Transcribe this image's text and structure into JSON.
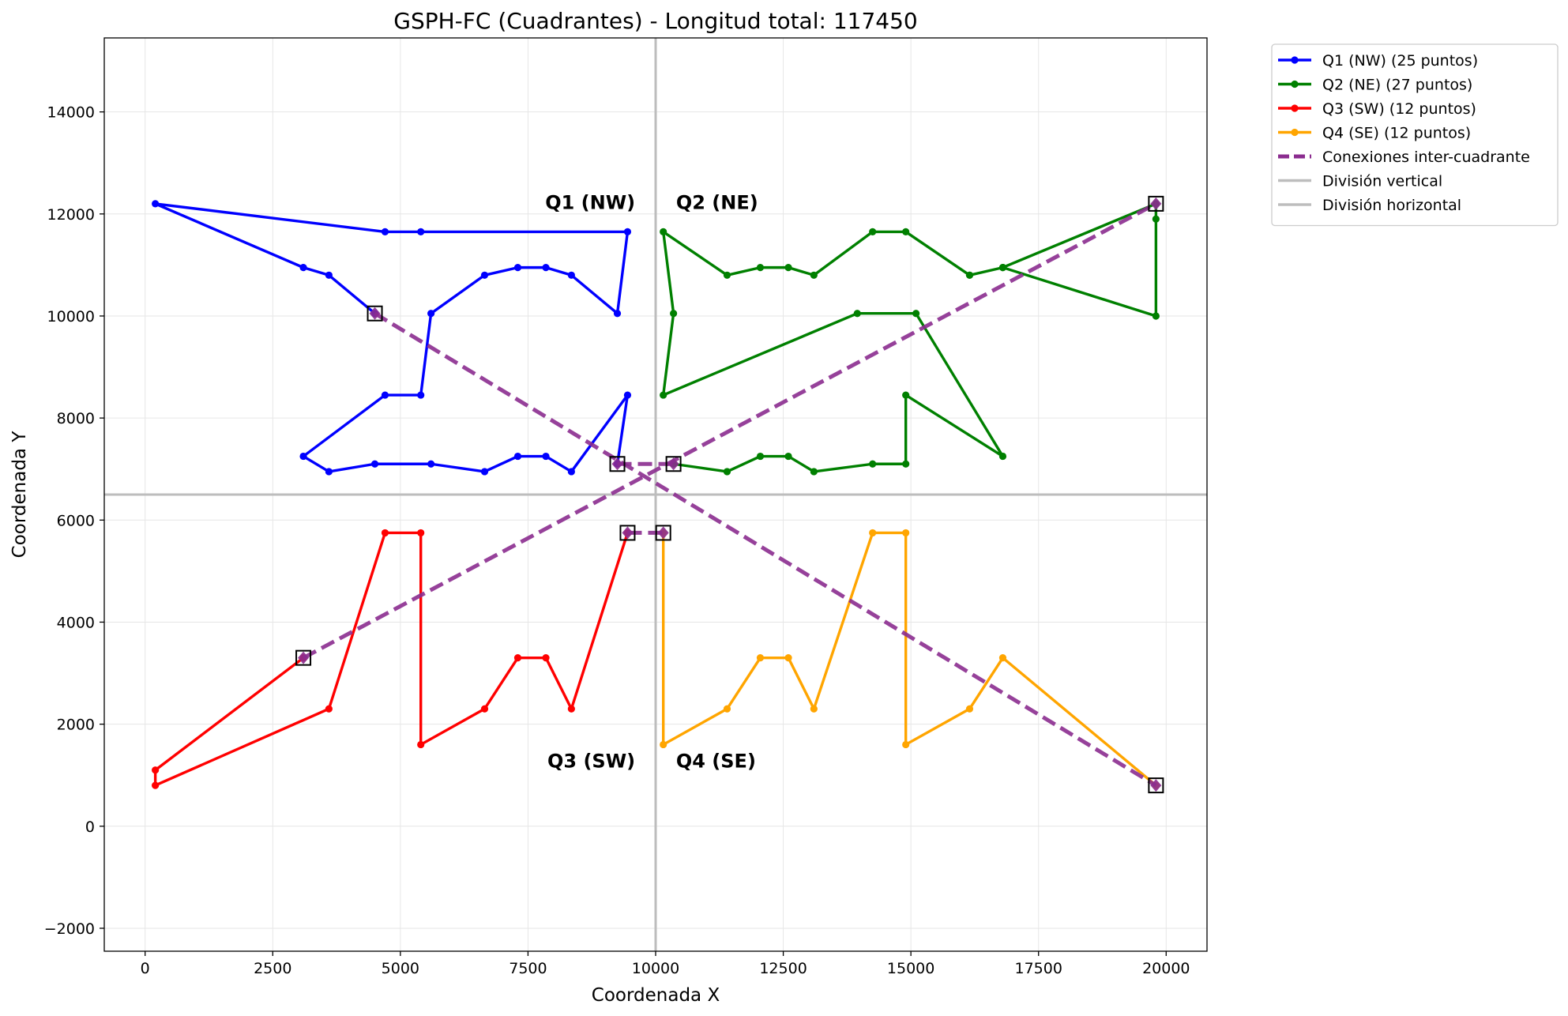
{
  "chart_data": {
    "type": "line",
    "title": "GSPH-FC (Cuadrantes) - Longitud total: 117450",
    "xlabel": "Coordenada X",
    "ylabel": "Coordenada Y",
    "xlim": [
      -800,
      20800
    ],
    "ylim": [
      -2450,
      15450
    ],
    "x_ticks": [
      0,
      2500,
      5000,
      7500,
      10000,
      12500,
      15000,
      17500,
      20000
    ],
    "x_tick_labels": [
      "0",
      "2500",
      "5000",
      "7500",
      "10000",
      "12500",
      "15000",
      "17500",
      "20000"
    ],
    "y_ticks": [
      -2000,
      0,
      2000,
      4000,
      6000,
      8000,
      10000,
      12000,
      14000
    ],
    "y_tick_labels": [
      "−2000",
      "0",
      "2000",
      "4000",
      "6000",
      "8000",
      "10000",
      "12000",
      "14000"
    ],
    "grid": true,
    "legend_position": "outside top-right",
    "divisions": {
      "vertical_x": 10000,
      "horizontal_y": 6500,
      "color": "#bdbdbd"
    },
    "quadrant_labels": [
      {
        "text": "Q1 (NW)",
        "x": 9600,
        "y": 12100,
        "anchor": "end"
      },
      {
        "text": "Q2 (NE)",
        "x": 10400,
        "y": 12100,
        "anchor": "start"
      },
      {
        "text": "Q3 (SW)",
        "x": 9600,
        "y": 1150,
        "anchor": "end"
      },
      {
        "text": "Q4 (SE)",
        "x": 10400,
        "y": 1150,
        "anchor": "start"
      }
    ],
    "series": [
      {
        "name": "Q1 (NW) (25 puntos)",
        "color": "#0000ff",
        "x": [
          4500,
          3600,
          3100,
          200,
          4700,
          5400,
          9450,
          9250,
          8350,
          7850,
          7300,
          6650,
          5600,
          5400,
          4700,
          3100,
          3600,
          4500,
          5600,
          6650,
          7300,
          7850,
          8350,
          9450,
          9250
        ],
        "y": [
          10050,
          10800,
          10950,
          12200,
          11650,
          11650,
          11650,
          10050,
          10800,
          10950,
          10950,
          10800,
          10050,
          8450,
          8450,
          7250,
          6950,
          7100,
          7100,
          6950,
          7250,
          7250,
          6950,
          8450,
          7100
        ]
      },
      {
        "name": "Q2 (NE) (27 puntos)",
        "color": "#008000",
        "x": [
          10350,
          11400,
          12050,
          12600,
          13100,
          14250,
          14900,
          14900,
          16800,
          15100,
          13950,
          10150,
          10350,
          10150,
          11400,
          12050,
          12600,
          13100,
          14250,
          14900,
          16150,
          16800,
          19800,
          19800,
          19800,
          16800,
          16150
        ],
        "y": [
          7100,
          6950,
          7250,
          7250,
          6950,
          7100,
          7100,
          8450,
          7250,
          10050,
          10050,
          8450,
          10050,
          11650,
          10800,
          10950,
          10950,
          10800,
          11650,
          11650,
          10800,
          10950,
          10000,
          11900,
          12200,
          10950,
          10800
        ]
      },
      {
        "name": "Q3 (SW) (12 puntos)",
        "color": "#ff0000",
        "x": [
          9450,
          8350,
          7850,
          7300,
          6650,
          5400,
          5400,
          4700,
          3600,
          200,
          200,
          3100
        ],
        "y": [
          5750,
          2300,
          3300,
          3300,
          2300,
          1600,
          5750,
          5750,
          2300,
          800,
          1100,
          3300
        ]
      },
      {
        "name": "Q4 (SE) (12 puntos)",
        "color": "#ffa500",
        "x": [
          10150,
          10150,
          11400,
          12050,
          12600,
          13100,
          14250,
          14900,
          14900,
          16150,
          16800,
          19800
        ],
        "y": [
          5750,
          1600,
          2300,
          3300,
          3300,
          2300,
          5750,
          5750,
          1600,
          2300,
          3300,
          800
        ]
      },
      {
        "name": "Conexiones inter-cuadrante",
        "color": "#8b2c8f",
        "style": "dashed",
        "segments": [
          [
            [
              4500,
              10050
            ],
            [
              19800,
              800
            ]
          ],
          [
            [
              3100,
              3300
            ],
            [
              19800,
              12200
            ]
          ],
          [
            [
              9250,
              7100
            ],
            [
              10350,
              7100
            ]
          ],
          [
            [
              9450,
              5750
            ],
            [
              10150,
              5750
            ]
          ]
        ]
      }
    ],
    "endpoint_markers": [
      [
        4500,
        10050
      ],
      [
        9250,
        7100
      ],
      [
        10350,
        7100
      ],
      [
        19800,
        12200
      ],
      [
        3100,
        3300
      ],
      [
        9450,
        5750
      ],
      [
        10150,
        5750
      ],
      [
        19800,
        800
      ]
    ],
    "legend": [
      {
        "label": "Q1 (NW) (25 puntos)",
        "color": "#0000ff",
        "style": "line-marker"
      },
      {
        "label": "Q2 (NE) (27 puntos)",
        "color": "#008000",
        "style": "line-marker"
      },
      {
        "label": "Q3 (SW) (12 puntos)",
        "color": "#ff0000",
        "style": "line-marker"
      },
      {
        "label": "Q4 (SE) (12 puntos)",
        "color": "#ffa500",
        "style": "line-marker"
      },
      {
        "label": "Conexiones inter-cuadrante",
        "color": "#8b2c8f",
        "style": "dashed"
      },
      {
        "label": "División vertical",
        "color": "#bdbdbd",
        "style": "line"
      },
      {
        "label": "División horizontal",
        "color": "#bdbdbd",
        "style": "line"
      }
    ]
  }
}
